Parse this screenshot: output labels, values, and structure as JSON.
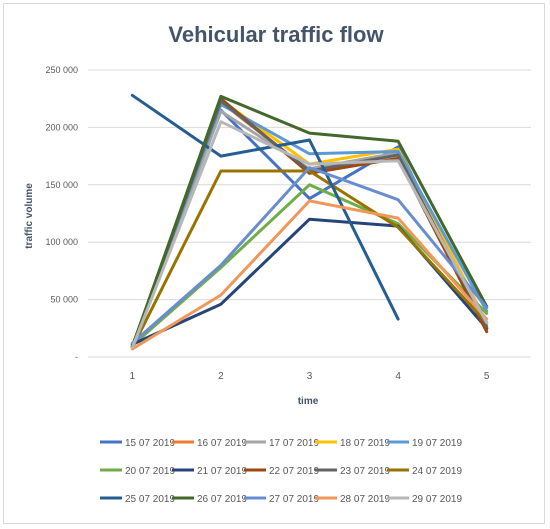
{
  "chart_data": {
    "type": "line",
    "title": "Vehicular traffic flow",
    "xlabel": "time",
    "ylabel": "traffic volume",
    "x": [
      1,
      2,
      3,
      4,
      5
    ],
    "x_tick_labels": [
      "1",
      "2",
      "3",
      "4",
      "5"
    ],
    "ylim": [
      0,
      250000
    ],
    "y_tick_labels": [
      "-",
      "50 000",
      "100 000",
      "150 000",
      "200 000",
      "250 000"
    ],
    "grid": "horizontal",
    "legend_position": "bottom",
    "series": [
      {
        "name": "15 07 2019",
        "color": "#4472c4",
        "values": [
          8000,
          215000,
          138000,
          183000,
          25000
        ]
      },
      {
        "name": "16 07 2019",
        "color": "#ed7d31",
        "values": [
          9000,
          222000,
          162000,
          178000,
          24000
        ]
      },
      {
        "name": "17 07 2019",
        "color": "#a5a5a5",
        "values": [
          9000,
          214000,
          164000,
          178000,
          28000
        ]
      },
      {
        "name": "18 07 2019",
        "color": "#ffc000",
        "values": [
          8000,
          224000,
          168000,
          181000,
          30000
        ]
      },
      {
        "name": "19 07 2019",
        "color": "#5b9bd5",
        "values": [
          9000,
          220000,
          177000,
          179000,
          40000
        ]
      },
      {
        "name": "20 07 2019",
        "color": "#70ad47",
        "values": [
          10000,
          78000,
          150000,
          116000,
          38000
        ]
      },
      {
        "name": "21 07 2019",
        "color": "#264478",
        "values": [
          11000,
          46000,
          120000,
          114000,
          25000
        ]
      },
      {
        "name": "22 07 2019",
        "color": "#9e480e",
        "values": [
          9000,
          225000,
          160000,
          173000,
          22000
        ]
      },
      {
        "name": "23 07 2019",
        "color": "#636363",
        "values": [
          9000,
          223000,
          162000,
          176000,
          26000
        ]
      },
      {
        "name": "24 07 2019",
        "color": "#997300",
        "values": [
          8000,
          162000,
          162000,
          113000,
          30000
        ]
      },
      {
        "name": "25 07 2019",
        "color": "#255e91",
        "values": [
          228000,
          175000,
          189000,
          33000,
          null
        ]
      },
      {
        "name": "26 07 2019",
        "color": "#43682b",
        "values": [
          9000,
          227000,
          195000,
          188000,
          44000
        ]
      },
      {
        "name": "27 07 2019",
        "color": "#698ed0",
        "values": [
          12000,
          80000,
          165000,
          137000,
          43000
        ]
      },
      {
        "name": "28 07 2019",
        "color": "#f1975a",
        "values": [
          7000,
          54000,
          136000,
          121000,
          33000
        ]
      },
      {
        "name": "29 07 2019",
        "color": "#b7b7b7",
        "values": [
          8000,
          205000,
          168000,
          171000,
          30000
        ]
      }
    ]
  }
}
